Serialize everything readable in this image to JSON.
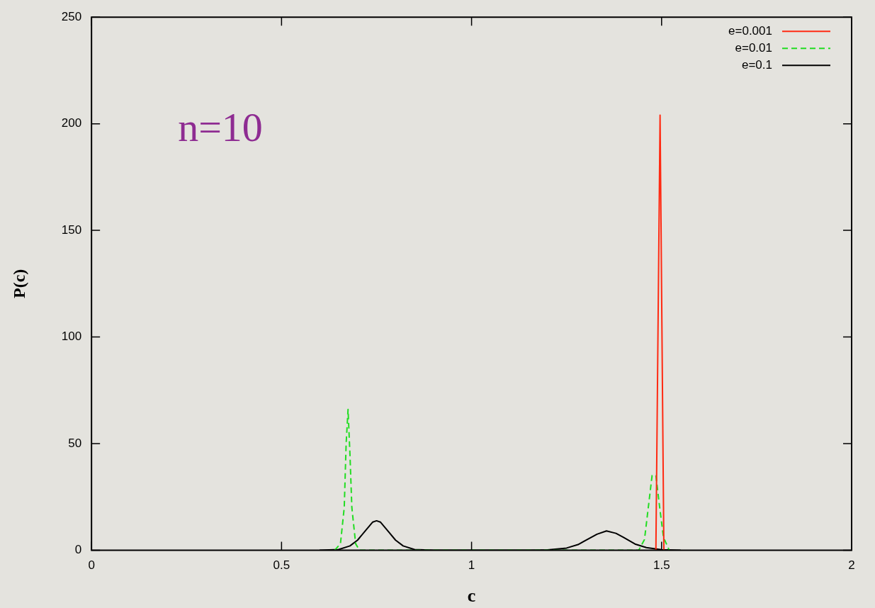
{
  "chart_data": {
    "type": "line",
    "xlabel": "c",
    "ylabel": "P(c)",
    "annotations": [
      "n=10"
    ],
    "xlim": [
      0,
      2
    ],
    "xticks": [
      0,
      0.5,
      1,
      1.5,
      2
    ],
    "ylim": [
      0,
      250
    ],
    "yticks": [
      0,
      50,
      100,
      150,
      200,
      250
    ],
    "grid": false,
    "legend": "top right",
    "marker": "none",
    "series": [
      {
        "name": "e=0.001",
        "color": "#ff2a12",
        "line_style": "solid",
        "x": [
          1.485,
          1.496,
          1.506
        ],
        "values": [
          0,
          204,
          0
        ]
      },
      {
        "name": "e=0.01",
        "color": "#22dd22",
        "line_style": "dashed",
        "x": [
          0.64,
          0.655,
          0.665,
          0.67,
          0.675,
          0.68,
          0.685,
          0.695,
          0.705,
          1.44,
          1.455,
          1.465,
          1.475,
          1.485,
          1.495,
          1.505,
          1.52
        ],
        "values": [
          0,
          3,
          20,
          50,
          66,
          45,
          20,
          3,
          0,
          0,
          5,
          20,
          35,
          35,
          20,
          6,
          0
        ]
      },
      {
        "name": "e=0.1",
        "color": "#000000",
        "line_style": "solid",
        "x": [
          0.6,
          0.65,
          0.68,
          0.7,
          0.72,
          0.74,
          0.75,
          0.76,
          0.78,
          0.8,
          0.82,
          0.85,
          0.9,
          1.15,
          1.2,
          1.25,
          1.28,
          1.3,
          1.33,
          1.355,
          1.38,
          1.4,
          1.43,
          1.46,
          1.5,
          1.55
        ],
        "values": [
          0,
          0.3,
          2,
          4.7,
          9,
          13.2,
          13.8,
          13.2,
          9,
          4.7,
          2,
          0.3,
          0,
          0,
          0.1,
          1,
          2.6,
          4.6,
          7.5,
          9,
          7.9,
          6,
          2.9,
          1.2,
          0.2,
          0
        ]
      }
    ]
  }
}
